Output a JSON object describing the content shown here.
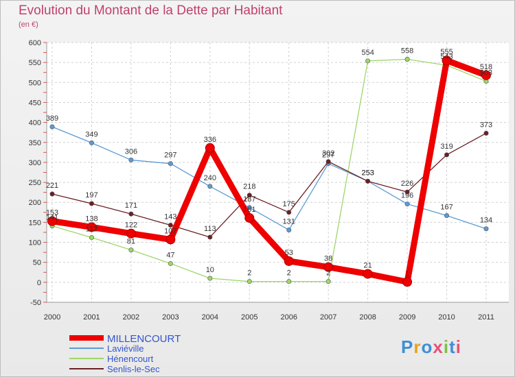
{
  "header": {
    "title": "Evolution du Montant de la Dette par Habitant",
    "unit": "(en €)"
  },
  "logo": {
    "text": "Proxiti"
  },
  "chart_data": {
    "type": "line",
    "categories": [
      "2000",
      "2001",
      "2002",
      "2003",
      "2004",
      "2005",
      "2006",
      "2007",
      "2008",
      "2009",
      "2010",
      "2011"
    ],
    "ylim": [
      -50,
      600
    ],
    "yticks": [
      -50,
      0,
      50,
      100,
      150,
      200,
      250,
      300,
      350,
      400,
      450,
      500,
      550,
      600
    ],
    "grid": true,
    "legend_position": "bottom-left",
    "series": [
      {
        "name": "MILLENCOURT",
        "color": "#ee0000",
        "values": [
          153,
          138,
          122,
          107,
          336,
          161,
          53,
          38,
          21,
          1,
          555,
          518
        ]
      },
      {
        "name": "Laviéville",
        "color": "#5b9bd5",
        "values": [
          389,
          349,
          306,
          297,
          240,
          187,
          131,
          297,
          253,
          196,
          167,
          134
        ]
      },
      {
        "name": "Hénencourt",
        "color": "#9ed66a",
        "values": [
          141,
          112,
          81,
          47,
          10,
          2,
          2,
          2,
          554,
          558,
          543,
          503
        ]
      },
      {
        "name": "Senlis-le-Sec",
        "color": "#6b1f24",
        "values": [
          221,
          197,
          171,
          143,
          113,
          218,
          175,
          302,
          253,
          226,
          319,
          373
        ]
      }
    ]
  }
}
